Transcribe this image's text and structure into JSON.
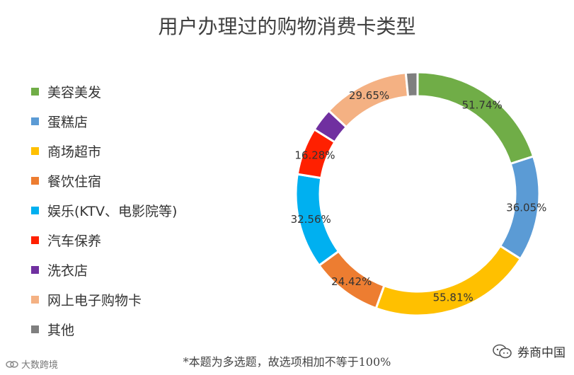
{
  "chart_data": {
    "type": "pie",
    "title": "用户办理过的购物消费卡类型",
    "categories": [
      "美容美发",
      "蛋糕店",
      "商场超市",
      "餐饮住宿",
      "娱乐(KTV、电影院等)",
      "汽车保养",
      "洗衣店",
      "网上电子购物卡",
      "其他"
    ],
    "values": [
      51.74,
      36.05,
      55.81,
      24.42,
      32.56,
      16.28,
      8,
      29.65,
      4
    ],
    "labels": [
      "51.74%",
      "36.05%",
      "55.81%",
      "24.42%",
      "32.56%",
      "16.28%",
      "",
      "29.65%",
      ""
    ],
    "colors": [
      "#70ad47",
      "#5b9bd5",
      "#ffc000",
      "#ed7d31",
      "#00b0f0",
      "#ff2000",
      "#7030a0",
      "#f4b183",
      "#7f7f7f"
    ],
    "legend_position": "left"
  },
  "footnote": "*本题为多选题，故选项相加不等于100%",
  "brand_left": "大数跨境",
  "brand_right": "券商中国"
}
